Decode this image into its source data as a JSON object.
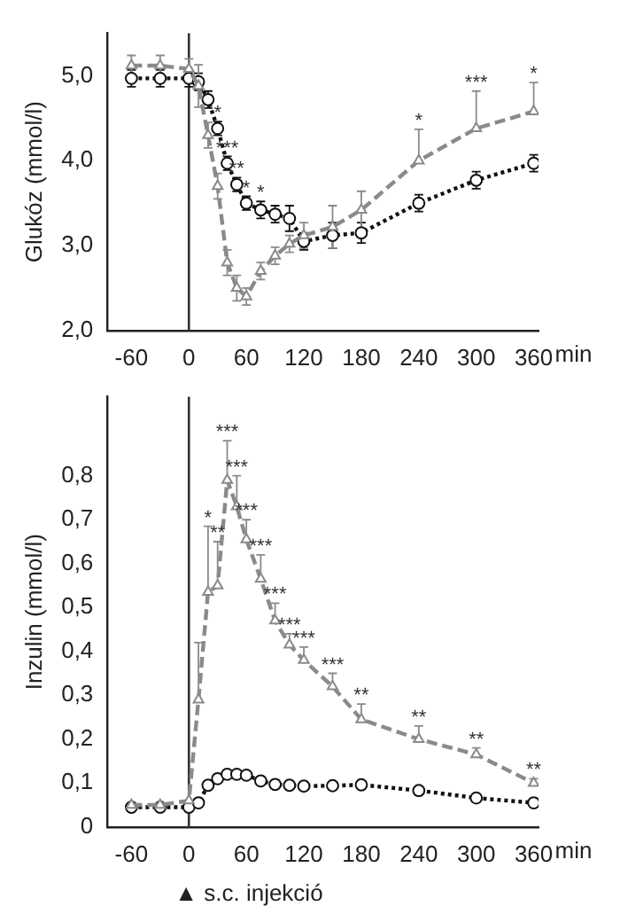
{
  "chart_data": [
    {
      "type": "line",
      "xlabel": "min",
      "ylabel": "Glukóz (mmol/l)",
      "xlim": [
        -85,
        365
      ],
      "xticks": [
        -60,
        0,
        60,
        120,
        180,
        240,
        300,
        360
      ],
      "ylim": [
        2,
        5.5
      ],
      "yticks": [
        {
          "value": 2,
          "label": "2,0"
        },
        {
          "value": 3,
          "label": "3,0"
        },
        {
          "value": 4,
          "label": "4,0"
        },
        {
          "value": 5,
          "label": "5,0"
        }
      ],
      "x": [
        -60,
        -30,
        0,
        10,
        20,
        30,
        40,
        50,
        60,
        75,
        90,
        105,
        120,
        150,
        180,
        240,
        300,
        360
      ],
      "series": [
        {
          "color": "#111111",
          "marker": "circle",
          "line_style": "dotted",
          "values": [
            4.97,
            4.97,
            4.97,
            4.93,
            4.72,
            4.38,
            3.97,
            3.72,
            3.5,
            3.42,
            3.37,
            3.32,
            3.05,
            3.12,
            3.15,
            3.5,
            3.77,
            3.97
          ],
          "errors": [
            0.1,
            0.1,
            0.1,
            0.1,
            0.1,
            0.08,
            0.08,
            0.08,
            0.08,
            0.1,
            0.1,
            0.15,
            0.1,
            0.15,
            0.12,
            0.1,
            0.1,
            0.1
          ]
        },
        {
          "color": "#8a8a8a",
          "marker": "triangle",
          "line_style": "dashed",
          "values": [
            5.12,
            5.12,
            5.08,
            4.88,
            4.3,
            3.7,
            2.8,
            2.5,
            2.4,
            2.7,
            2.88,
            3.02,
            3.12,
            3.22,
            3.42,
            4.0,
            4.38,
            4.58
          ],
          "errors": [
            0.12,
            0.12,
            0.12,
            0.25,
            0.15,
            0.15,
            0.15,
            0.15,
            0.1,
            0.1,
            0.1,
            0.1,
            0.15,
            0.25,
            0.22,
            [
              4.0,
              4.37
            ],
            [
              4.38,
              4.82
            ],
            [
              4.58,
              4.92
            ]
          ]
        }
      ],
      "ref_lines": [
        {
          "axis": "x",
          "value": 0,
          "color": "#333333"
        }
      ],
      "annotations": [
        {
          "text": "*",
          "x": 30,
          "y": 4.46
        },
        {
          "text": "***",
          "x": 40,
          "y": 4.05
        },
        {
          "text": "**",
          "x": 50,
          "y": 3.8
        },
        {
          "text": "*",
          "x": 60,
          "y": 3.58
        },
        {
          "text": "*",
          "x": 75,
          "y": 3.52
        },
        {
          "text": "*",
          "x": 240,
          "y": 4.37
        },
        {
          "text": "***",
          "x": 300,
          "y": 4.82
        },
        {
          "text": "*",
          "x": 360,
          "y": 4.92
        }
      ]
    },
    {
      "type": "line",
      "xlabel": "min",
      "ylabel": "Inzulin (mmol/l)",
      "xlim": [
        -85,
        365
      ],
      "xticks": [
        -60,
        0,
        60,
        120,
        180,
        240,
        300,
        360
      ],
      "ylim": [
        0,
        0.98
      ],
      "yticks": [
        0,
        {
          "value": 0.1,
          "label": "0,1"
        },
        {
          "value": 0.2,
          "label": "0,2"
        },
        {
          "value": 0.3,
          "label": "0,3"
        },
        {
          "value": 0.4,
          "label": "0,4"
        },
        {
          "value": 0.5,
          "label": "0,5"
        },
        {
          "value": 0.6,
          "label": "0,6"
        },
        {
          "value": 0.7,
          "label": "0,7"
        },
        {
          "value": 0.8,
          "label": "0,8"
        }
      ],
      "x": [
        -60,
        -30,
        0,
        10,
        20,
        30,
        40,
        50,
        60,
        75,
        90,
        105,
        120,
        150,
        180,
        240,
        300,
        360
      ],
      "series": [
        {
          "color": "#111111",
          "marker": "circle",
          "line_style": "dotted",
          "values": [
            0.045,
            0.045,
            0.045,
            0.055,
            0.095,
            0.11,
            0.12,
            0.12,
            0.118,
            0.105,
            0.097,
            0.095,
            0.093,
            0.094,
            0.096,
            0.083,
            0.066,
            0.055
          ]
        },
        {
          "color": "#8a8a8a",
          "marker": "triangle",
          "line_style": "dashed",
          "values": [
            0.05,
            0.05,
            0.06,
            0.29,
            0.535,
            0.55,
            0.79,
            0.73,
            0.655,
            0.565,
            0.47,
            0.415,
            0.38,
            0.32,
            0.245,
            0.2,
            0.165,
            0.1
          ],
          "errors": [
            null,
            null,
            null,
            [
              0.29,
              0.42
            ],
            [
              0.535,
              0.685
            ],
            [
              0.55,
              0.65
            ],
            [
              0.79,
              0.88
            ],
            [
              0.73,
              0.8
            ],
            [
              0.655,
              0.7
            ],
            [
              0.565,
              0.62
            ],
            [
              0.47,
              0.51
            ],
            [
              0.415,
              0.44
            ],
            [
              0.38,
              0.41
            ],
            [
              0.32,
              0.35
            ],
            [
              0.245,
              0.28
            ],
            [
              0.2,
              0.23
            ],
            [
              0.165,
              0.18
            ],
            [
              0.1,
              0.11
            ]
          ]
        }
      ],
      "ref_lines": [
        {
          "axis": "x",
          "value": 0,
          "color": "#333333"
        }
      ],
      "annotations": [
        {
          "text": "*",
          "x": 20,
          "y": 0.685
        },
        {
          "text": "**",
          "x": 30,
          "y": 0.65
        },
        {
          "text": "***",
          "x": 40,
          "y": 0.88
        },
        {
          "text": "***",
          "x": 50,
          "y": 0.8
        },
        {
          "text": "***",
          "x": 60,
          "y": 0.7
        },
        {
          "text": "***",
          "x": 75,
          "y": 0.62
        },
        {
          "text": "***",
          "x": 90,
          "y": 0.51
        },
        {
          "text": "***",
          "x": 105,
          "y": 0.44
        },
        {
          "text": "***",
          "x": 120,
          "y": 0.41
        },
        {
          "text": "***",
          "x": 150,
          "y": 0.35
        },
        {
          "text": "**",
          "x": 180,
          "y": 0.28
        },
        {
          "text": "**",
          "x": 240,
          "y": 0.23
        },
        {
          "text": "**",
          "x": 300,
          "y": 0.18
        },
        {
          "text": "**",
          "x": 360,
          "y": 0.11
        },
        "▲ s.c. injekció"
      ]
    }
  ]
}
